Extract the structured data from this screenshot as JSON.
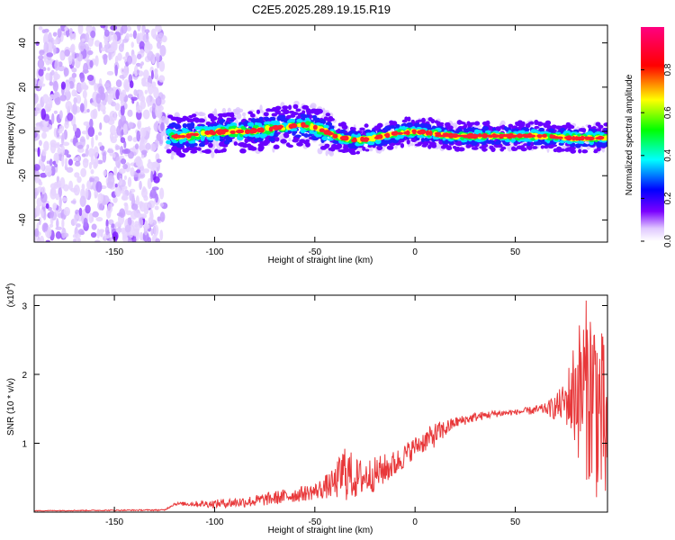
{
  "figure_title": "C2E5.2025.289.19.15.R19",
  "chart_data": [
    {
      "type": "heatmap",
      "title": "C2E5.2025.289.19.15.R19",
      "xlabel": "Height of straight line (km)",
      "ylabel": "Frequency (Hz)",
      "xlim": [
        -190,
        96
      ],
      "ylim": [
        -50,
        48
      ],
      "xticks": [
        -150,
        -100,
        -50,
        0,
        50
      ],
      "yticks": [
        -40,
        -20,
        0,
        20,
        40
      ],
      "colorbar": {
        "label": "Normalized spectral amplitude",
        "range": [
          0,
          1
        ],
        "ticks": [
          0.0,
          0.2,
          0.4,
          0.6,
          0.8
        ]
      },
      "ridge": {
        "x": [
          -125,
          -115,
          -105,
          -95,
          -85,
          -75,
          -65,
          -55,
          -48,
          -40,
          -30,
          -20,
          -10,
          0,
          10,
          20,
          40,
          60,
          80,
          95
        ],
        "y": [
          -2,
          -2,
          -1,
          0,
          0,
          1,
          2,
          3,
          1,
          -2,
          -4,
          -3,
          -1,
          0,
          -1,
          -2,
          -2,
          -2,
          -3,
          -3
        ]
      },
      "noise_region_x": [
        -190,
        -125
      ]
    },
    {
      "type": "line",
      "xlabel": "Height of straight line (km)",
      "ylabel": "SNR (10 * v/v)",
      "y_multiplier": "(x10^4)",
      "y_multiplier_base": "(x10",
      "y_multiplier_exp": "4",
      "y_multiplier_close": ")",
      "xlim": [
        -190,
        96
      ],
      "ylim": [
        0,
        3.15
      ],
      "xticks": [
        -150,
        -100,
        -50,
        0,
        50
      ],
      "yticks": [
        1,
        2,
        3
      ],
      "series": [
        {
          "color": "#e8383a",
          "trend": {
            "x": [
              -190,
              -125,
              -120,
              -100,
              -80,
              -60,
              -50,
              -40,
              -35,
              -30,
              -20,
              -10,
              0,
              10,
              20,
              30,
              40,
              50,
              60,
              70,
              75,
              80,
              85,
              90,
              96
            ],
            "y": [
              0.02,
              0.03,
              0.12,
              0.12,
              0.16,
              0.25,
              0.3,
              0.42,
              0.6,
              0.48,
              0.55,
              0.7,
              0.95,
              1.12,
              1.3,
              1.38,
              1.43,
              1.45,
              1.48,
              1.52,
              1.6,
              1.75,
              1.8,
              1.7,
              1.0
            ]
          },
          "noise_amplitude": {
            "x": [
              -190,
              -125,
              -100,
              -70,
              -50,
              -40,
              -35,
              -30,
              -20,
              -10,
              0,
              10,
              20,
              50,
              65,
              75,
              80,
              85,
              90,
              96
            ],
            "y": [
              0.005,
              0.01,
              0.06,
              0.1,
              0.12,
              0.22,
              0.45,
              0.3,
              0.25,
              0.2,
              0.15,
              0.18,
              0.08,
              0.04,
              0.08,
              0.3,
              0.9,
              1.3,
              1.5,
              1.2
            ]
          }
        }
      ]
    }
  ]
}
